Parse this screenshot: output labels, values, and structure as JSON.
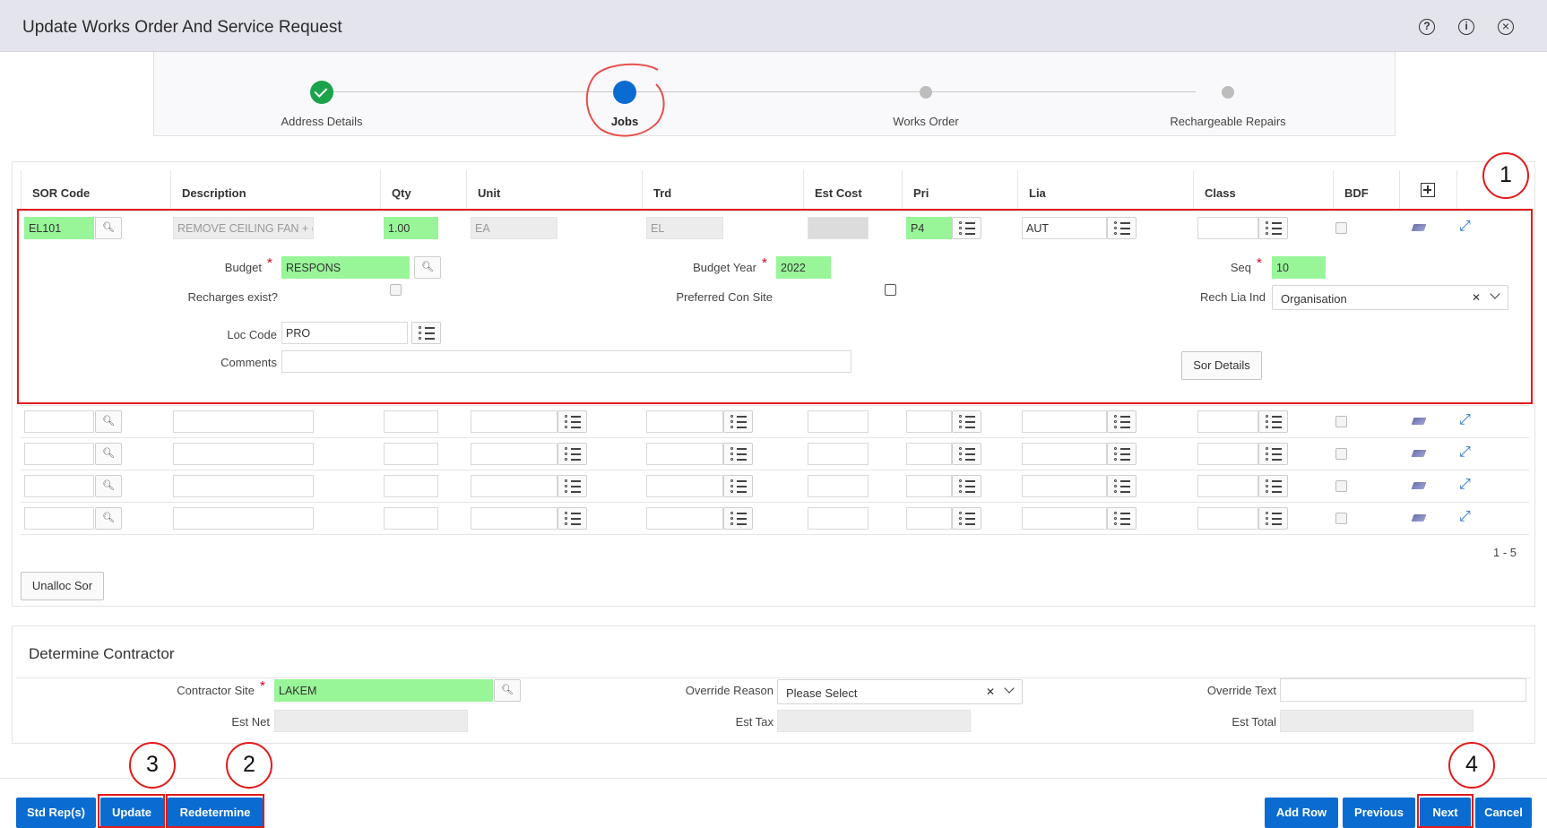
{
  "header": {
    "title": "Update Works Order And Service Request"
  },
  "train": {
    "steps": [
      "Address Details",
      "Jobs",
      "Works Order",
      "Rechargeable Repairs"
    ]
  },
  "table": {
    "columns": [
      "SOR Code",
      "Description",
      "Qty",
      "Unit",
      "Trd",
      "Est Cost",
      "Pri",
      "Lia",
      "Class",
      "BDF"
    ],
    "row1": {
      "sor_code": "EL101",
      "description": "REMOVE CEILING FAN + (",
      "qty": "1.00",
      "unit": "EA",
      "trd": "EL",
      "pri": "P4",
      "lia": "AUT"
    },
    "pagination": "1 - 5"
  },
  "detail": {
    "budget_label": "Budget",
    "budget": "RESPONS",
    "budget_year_label": "Budget Year",
    "budget_year": "2022",
    "seq_label": "Seq",
    "seq": "10",
    "recharges_label": "Recharges exist?",
    "preferred_label": "Preferred Con Site",
    "rech_lia_label": "Rech Lia Ind",
    "rech_lia": "Organisation",
    "loc_code_label": "Loc Code",
    "loc_code": "PRO",
    "comments_label": "Comments",
    "sor_details_button": "Sor Details"
  },
  "unalloc_button": "Unalloc Sor",
  "contractor": {
    "section_title": "Determine Contractor",
    "site_label": "Contractor Site",
    "site": "LAKEM",
    "override_reason_label": "Override Reason",
    "override_reason": "Please Select",
    "override_text_label": "Override Text",
    "est_net_label": "Est Net",
    "est_tax_label": "Est Tax",
    "est_total_label": "Est Total"
  },
  "buttons": {
    "std_rep": "Std Rep(s)",
    "update": "Update",
    "redetermine": "Redetermine",
    "add_row": "Add Row",
    "previous": "Previous",
    "next": "Next",
    "cancel": "Cancel"
  },
  "callouts": [
    "1",
    "2",
    "3",
    "4"
  ],
  "icons": {
    "help": "help-icon",
    "info": "info-icon",
    "close": "close-icon",
    "add": "plus-icon"
  },
  "colors": {
    "accent": "#0a6cd0",
    "required_field": "#98f598",
    "annotation": "#e21b1b",
    "complete": "#1aa34a"
  }
}
